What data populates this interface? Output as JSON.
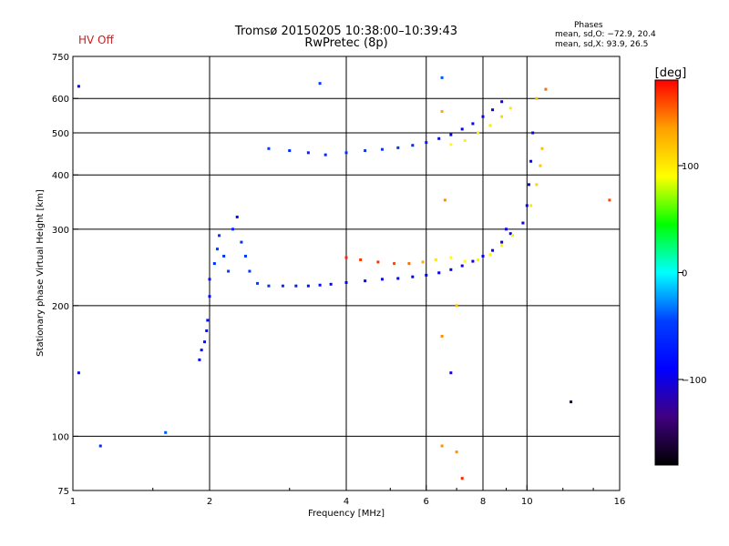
{
  "header": {
    "hv_status": "HV Off",
    "title": "Tromsø 20150205 10:38:00–10:39:43",
    "subtitle": "RwPretec (8p)",
    "phases_title": "Phases",
    "phases_o": "mean, sd,O: −72.9, 20.4",
    "phases_x": "mean, sd,X:  93.9, 26.5"
  },
  "colorbar": {
    "unit_label": "[deg]",
    "ticks": [
      {
        "value": 100,
        "label": "100"
      },
      {
        "value": 0,
        "label": "0"
      },
      {
        "value": -100,
        "label": "−100"
      }
    ],
    "range": [
      -180,
      180
    ],
    "stops": [
      "#ff0000",
      "#ffa000",
      "#ffff00",
      "#00ff00",
      "#00ffff",
      "#0040ff",
      "#0000ff",
      "#400080",
      "#000000"
    ]
  },
  "chart_data": {
    "type": "scatter",
    "title": "Tromsø 20150205 10:38:00–10:39:43",
    "subtitle": "RwPretec (8p)",
    "xlabel": "Frequency [MHz]",
    "ylabel": "Stationary phase Virtual Height [km]",
    "xscale": "log",
    "yscale": "log",
    "xlim": [
      1,
      16
    ],
    "ylim": [
      75,
      750
    ],
    "grid": true,
    "x_ticks": [
      {
        "value": 1,
        "label": "1"
      },
      {
        "value": 2,
        "label": "2"
      },
      {
        "value": 4,
        "label": "4"
      },
      {
        "value": 6,
        "label": "6"
      },
      {
        "value": 8,
        "label": "8"
      },
      {
        "value": 10,
        "label": "10"
      },
      {
        "value": 16,
        "label": "16"
      }
    ],
    "y_ticks": [
      {
        "value": 75,
        "label": "75"
      },
      {
        "value": 100,
        "label": "100"
      },
      {
        "value": 200,
        "label": "200"
      },
      {
        "value": 300,
        "label": "300"
      },
      {
        "value": 400,
        "label": "400"
      },
      {
        "value": 500,
        "label": "500"
      },
      {
        "value": 600,
        "label": "600"
      },
      {
        "value": 750,
        "label": "750"
      }
    ],
    "minor_x_ticks": [
      1.5,
      3,
      5,
      7,
      9,
      12,
      14
    ],
    "color_by": "phase [deg]",
    "points": [
      {
        "x": 1.9,
        "y": 150,
        "phase": -85
      },
      {
        "x": 1.92,
        "y": 158,
        "phase": -85
      },
      {
        "x": 1.95,
        "y": 165,
        "phase": -80
      },
      {
        "x": 1.97,
        "y": 175,
        "phase": -80
      },
      {
        "x": 1.98,
        "y": 185,
        "phase": -82
      },
      {
        "x": 2.0,
        "y": 210,
        "phase": -85
      },
      {
        "x": 2.0,
        "y": 230,
        "phase": -80
      },
      {
        "x": 2.05,
        "y": 250,
        "phase": -60
      },
      {
        "x": 2.08,
        "y": 270,
        "phase": -50
      },
      {
        "x": 2.1,
        "y": 290,
        "phase": -55
      },
      {
        "x": 2.15,
        "y": 260,
        "phase": -55
      },
      {
        "x": 2.2,
        "y": 240,
        "phase": -50
      },
      {
        "x": 2.25,
        "y": 300,
        "phase": -60
      },
      {
        "x": 2.3,
        "y": 320,
        "phase": -85
      },
      {
        "x": 2.35,
        "y": 280,
        "phase": -55
      },
      {
        "x": 2.4,
        "y": 260,
        "phase": -50
      },
      {
        "x": 2.45,
        "y": 240,
        "phase": -50
      },
      {
        "x": 2.55,
        "y": 225,
        "phase": -50
      },
      {
        "x": 2.7,
        "y": 222,
        "phase": -55
      },
      {
        "x": 2.9,
        "y": 222,
        "phase": -60
      },
      {
        "x": 3.1,
        "y": 222,
        "phase": -70
      },
      {
        "x": 3.3,
        "y": 222,
        "phase": -75
      },
      {
        "x": 3.5,
        "y": 223,
        "phase": -80
      },
      {
        "x": 3.7,
        "y": 224,
        "phase": -85
      },
      {
        "x": 4.0,
        "y": 226,
        "phase": -85
      },
      {
        "x": 4.4,
        "y": 228,
        "phase": -88
      },
      {
        "x": 4.8,
        "y": 230,
        "phase": -90
      },
      {
        "x": 5.2,
        "y": 231,
        "phase": -90
      },
      {
        "x": 5.6,
        "y": 233,
        "phase": -90
      },
      {
        "x": 6.0,
        "y": 235,
        "phase": -92
      },
      {
        "x": 6.4,
        "y": 238,
        "phase": -92
      },
      {
        "x": 6.8,
        "y": 242,
        "phase": -95
      },
      {
        "x": 7.2,
        "y": 247,
        "phase": -95
      },
      {
        "x": 7.6,
        "y": 253,
        "phase": -95
      },
      {
        "x": 8.0,
        "y": 260,
        "phase": -96
      },
      {
        "x": 8.4,
        "y": 268,
        "phase": -96
      },
      {
        "x": 8.8,
        "y": 280,
        "phase": -96
      },
      {
        "x": 9.2,
        "y": 293,
        "phase": -96
      },
      {
        "x": 4.0,
        "y": 258,
        "phase": 170
      },
      {
        "x": 4.3,
        "y": 255,
        "phase": 165
      },
      {
        "x": 4.7,
        "y": 252,
        "phase": 165
      },
      {
        "x": 5.1,
        "y": 250,
        "phase": 160
      },
      {
        "x": 5.5,
        "y": 250,
        "phase": 150
      },
      {
        "x": 5.9,
        "y": 252,
        "phase": 130
      },
      {
        "x": 6.3,
        "y": 255,
        "phase": 100
      },
      {
        "x": 6.8,
        "y": 258,
        "phase": 90
      },
      {
        "x": 7.3,
        "y": 253,
        "phase": 90
      },
      {
        "x": 7.8,
        "y": 255,
        "phase": 95
      },
      {
        "x": 8.3,
        "y": 262,
        "phase": 95
      },
      {
        "x": 8.8,
        "y": 275,
        "phase": 95
      },
      {
        "x": 9.3,
        "y": 290,
        "phase": 95
      },
      {
        "x": 9.8,
        "y": 310,
        "phase": 95
      },
      {
        "x": 10.2,
        "y": 340,
        "phase": 100
      },
      {
        "x": 10.5,
        "y": 380,
        "phase": 110
      },
      {
        "x": 10.7,
        "y": 420,
        "phase": 115
      },
      {
        "x": 10.8,
        "y": 460,
        "phase": 120
      },
      {
        "x": 9.8,
        "y": 310,
        "phase": -96
      },
      {
        "x": 10.0,
        "y": 340,
        "phase": -96
      },
      {
        "x": 10.1,
        "y": 380,
        "phase": -96
      },
      {
        "x": 10.2,
        "y": 430,
        "phase": -96
      },
      {
        "x": 10.3,
        "y": 500,
        "phase": -96
      },
      {
        "x": 2.7,
        "y": 460,
        "phase": -50
      },
      {
        "x": 3.0,
        "y": 455,
        "phase": -60
      },
      {
        "x": 3.3,
        "y": 450,
        "phase": -65
      },
      {
        "x": 3.6,
        "y": 445,
        "phase": -60
      },
      {
        "x": 4.0,
        "y": 450,
        "phase": -55
      },
      {
        "x": 4.4,
        "y": 455,
        "phase": -50
      },
      {
        "x": 4.8,
        "y": 458,
        "phase": -50
      },
      {
        "x": 5.2,
        "y": 462,
        "phase": -55
      },
      {
        "x": 5.6,
        "y": 468,
        "phase": -60
      },
      {
        "x": 6.0,
        "y": 475,
        "phase": -70
      },
      {
        "x": 6.4,
        "y": 485,
        "phase": -85
      },
      {
        "x": 6.8,
        "y": 495,
        "phase": -90
      },
      {
        "x": 7.2,
        "y": 510,
        "phase": -95
      },
      {
        "x": 7.6,
        "y": 525,
        "phase": -95
      },
      {
        "x": 8.0,
        "y": 545,
        "phase": -96
      },
      {
        "x": 8.4,
        "y": 565,
        "phase": -96
      },
      {
        "x": 8.8,
        "y": 590,
        "phase": -96
      },
      {
        "x": 6.8,
        "y": 470,
        "phase": 90
      },
      {
        "x": 7.3,
        "y": 480,
        "phase": 95
      },
      {
        "x": 7.8,
        "y": 500,
        "phase": 100
      },
      {
        "x": 8.3,
        "y": 520,
        "phase": 100
      },
      {
        "x": 8.8,
        "y": 545,
        "phase": 110
      },
      {
        "x": 9.2,
        "y": 570,
        "phase": 100
      },
      {
        "x": 6.5,
        "y": 560,
        "phase": 130
      },
      {
        "x": 6.6,
        "y": 350,
        "phase": 140
      },
      {
        "x": 6.5,
        "y": 170,
        "phase": 140
      },
      {
        "x": 6.5,
        "y": 95,
        "phase": 140
      },
      {
        "x": 7.0,
        "y": 92,
        "phase": 140
      },
      {
        "x": 7.2,
        "y": 80,
        "phase": 170
      },
      {
        "x": 11.0,
        "y": 630,
        "phase": 150
      },
      {
        "x": 10.5,
        "y": 600,
        "phase": 120
      },
      {
        "x": 3.5,
        "y": 650,
        "phase": -50
      },
      {
        "x": 6.5,
        "y": 670,
        "phase": -40
      },
      {
        "x": 1.6,
        "y": 102,
        "phase": -40
      },
      {
        "x": 1.15,
        "y": 95,
        "phase": -60
      },
      {
        "x": 1.03,
        "y": 140,
        "phase": -80
      },
      {
        "x": 1.03,
        "y": 640,
        "phase": -90
      },
      {
        "x": 12.5,
        "y": 120,
        "phase": -160
      },
      {
        "x": 15.2,
        "y": 350,
        "phase": 160
      },
      {
        "x": 6.8,
        "y": 140,
        "phase": -100
      },
      {
        "x": 9.0,
        "y": 300,
        "phase": -100
      },
      {
        "x": 7.0,
        "y": 200,
        "phase": 120
      }
    ]
  }
}
